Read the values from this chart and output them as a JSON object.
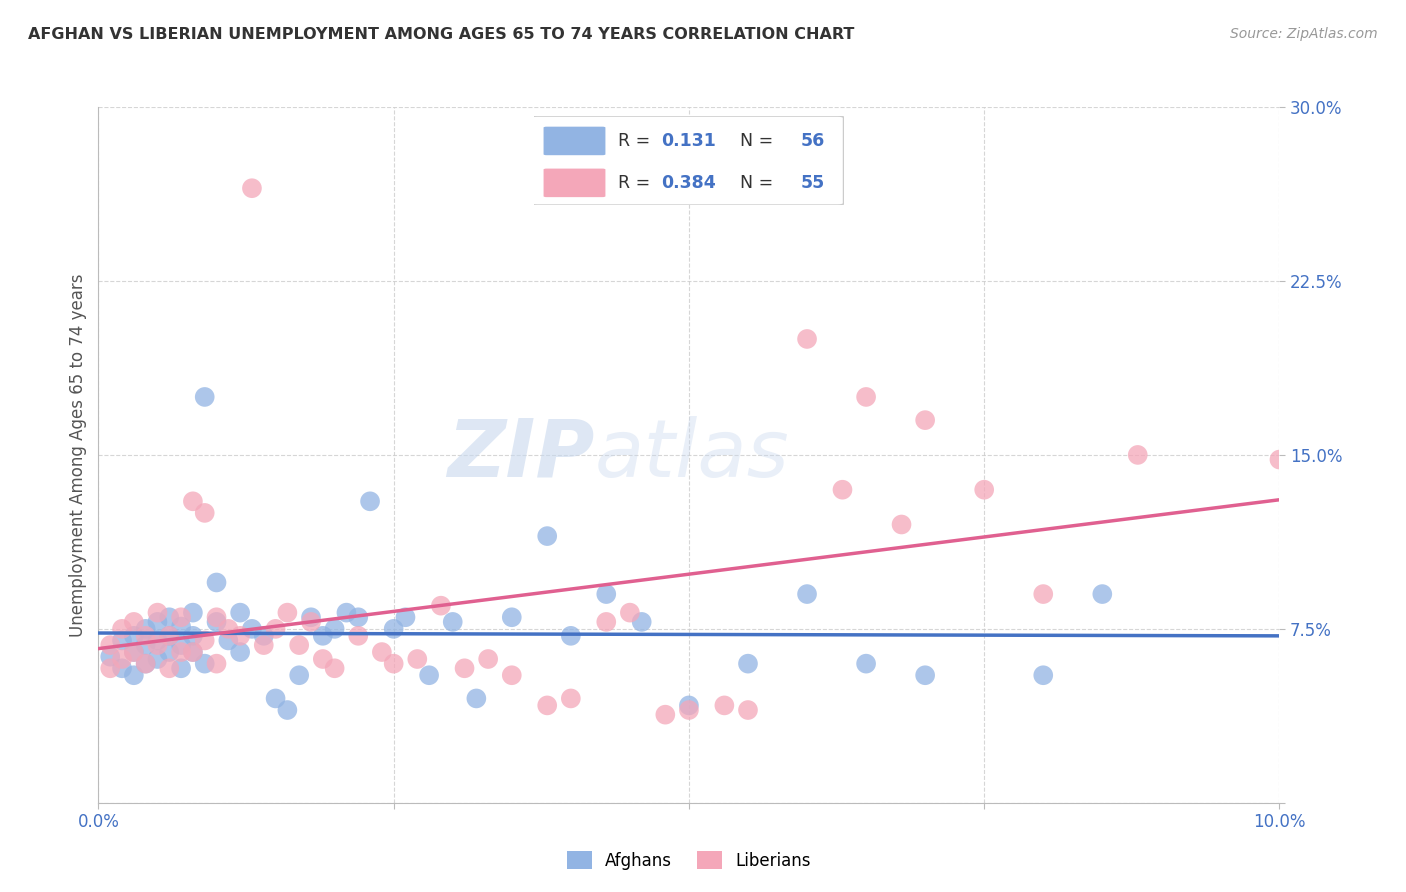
{
  "title": "AFGHAN VS LIBERIAN UNEMPLOYMENT AMONG AGES 65 TO 74 YEARS CORRELATION CHART",
  "source": "Source: ZipAtlas.com",
  "ylabel": "Unemployment Among Ages 65 to 74 years",
  "xlim": [
    0.0,
    0.1
  ],
  "ylim": [
    0.0,
    0.3
  ],
  "xticks": [
    0.0,
    0.025,
    0.05,
    0.075,
    0.1
  ],
  "xticklabels": [
    "0.0%",
    "",
    "",
    "",
    "10.0%"
  ],
  "yticks": [
    0.0,
    0.075,
    0.15,
    0.225,
    0.3
  ],
  "yticklabels": [
    "",
    "7.5%",
    "15.0%",
    "22.5%",
    "30.0%"
  ],
  "afghan_color": "#92b4e3",
  "liberian_color": "#f4a7b9",
  "afghan_line_color": "#4472c4",
  "liberian_line_color": "#e06090",
  "watermark_zip": "ZIP",
  "watermark_atlas": "atlas",
  "legend_R_afghan": "0.131",
  "legend_N_afghan": "56",
  "legend_R_liberian": "0.384",
  "legend_N_liberian": "55",
  "tick_color": "#4472c4",
  "title_color": "#333333",
  "source_color": "#999999",
  "ylabel_color": "#555555",
  "afghan_x": [
    0.001,
    0.002,
    0.002,
    0.003,
    0.003,
    0.003,
    0.004,
    0.004,
    0.004,
    0.005,
    0.005,
    0.005,
    0.006,
    0.006,
    0.006,
    0.007,
    0.007,
    0.007,
    0.008,
    0.008,
    0.008,
    0.009,
    0.009,
    0.01,
    0.01,
    0.011,
    0.012,
    0.012,
    0.013,
    0.014,
    0.015,
    0.016,
    0.017,
    0.018,
    0.019,
    0.02,
    0.021,
    0.022,
    0.023,
    0.025,
    0.026,
    0.028,
    0.03,
    0.032,
    0.035,
    0.038,
    0.04,
    0.043,
    0.046,
    0.05,
    0.055,
    0.06,
    0.065,
    0.07,
    0.08,
    0.085
  ],
  "afghan_y": [
    0.063,
    0.058,
    0.07,
    0.055,
    0.065,
    0.072,
    0.06,
    0.068,
    0.075,
    0.062,
    0.07,
    0.078,
    0.065,
    0.072,
    0.08,
    0.058,
    0.068,
    0.076,
    0.065,
    0.072,
    0.082,
    0.06,
    0.175,
    0.078,
    0.095,
    0.07,
    0.065,
    0.082,
    0.075,
    0.072,
    0.045,
    0.04,
    0.055,
    0.08,
    0.072,
    0.075,
    0.082,
    0.08,
    0.13,
    0.075,
    0.08,
    0.055,
    0.078,
    0.045,
    0.08,
    0.115,
    0.072,
    0.09,
    0.078,
    0.042,
    0.06,
    0.09,
    0.06,
    0.055,
    0.055,
    0.09
  ],
  "liberian_x": [
    0.001,
    0.001,
    0.002,
    0.002,
    0.003,
    0.003,
    0.004,
    0.004,
    0.005,
    0.005,
    0.006,
    0.006,
    0.007,
    0.007,
    0.008,
    0.008,
    0.009,
    0.009,
    0.01,
    0.01,
    0.011,
    0.012,
    0.013,
    0.014,
    0.015,
    0.016,
    0.017,
    0.018,
    0.019,
    0.02,
    0.022,
    0.024,
    0.025,
    0.027,
    0.029,
    0.031,
    0.033,
    0.035,
    0.038,
    0.04,
    0.043,
    0.045,
    0.048,
    0.05,
    0.053,
    0.055,
    0.06,
    0.063,
    0.065,
    0.068,
    0.07,
    0.075,
    0.08,
    0.088,
    0.1
  ],
  "liberian_y": [
    0.058,
    0.068,
    0.062,
    0.075,
    0.065,
    0.078,
    0.06,
    0.072,
    0.068,
    0.082,
    0.058,
    0.072,
    0.065,
    0.08,
    0.065,
    0.13,
    0.125,
    0.07,
    0.06,
    0.08,
    0.075,
    0.072,
    0.265,
    0.068,
    0.075,
    0.082,
    0.068,
    0.078,
    0.062,
    0.058,
    0.072,
    0.065,
    0.06,
    0.062,
    0.085,
    0.058,
    0.062,
    0.055,
    0.042,
    0.045,
    0.078,
    0.082,
    0.038,
    0.04,
    0.042,
    0.04,
    0.2,
    0.135,
    0.175,
    0.12,
    0.165,
    0.135,
    0.09,
    0.15,
    0.148
  ]
}
